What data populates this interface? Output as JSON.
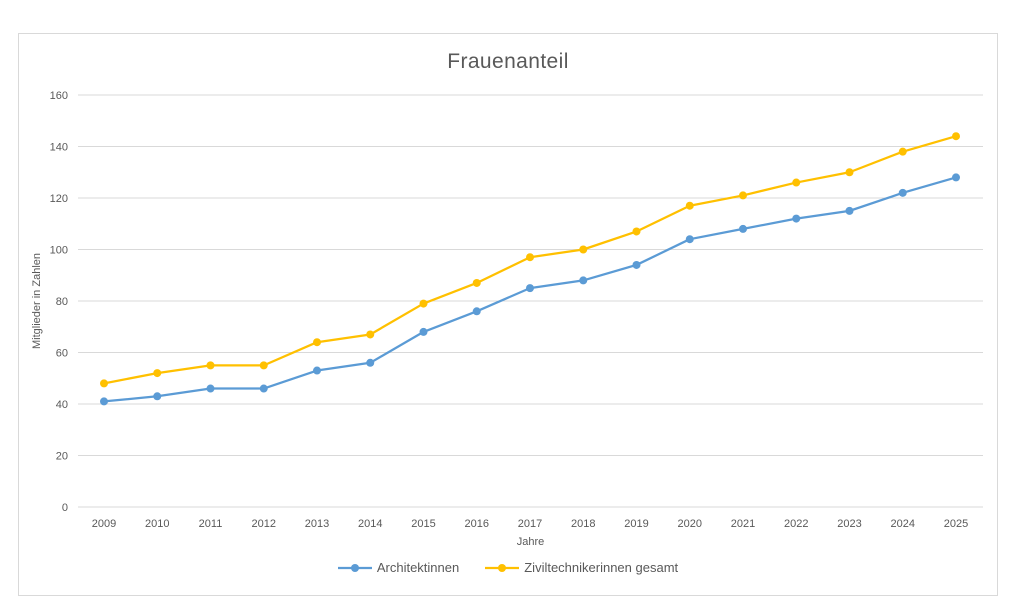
{
  "chart_data": {
    "type": "line",
    "title": "Frauenanteil",
    "xlabel": "Jahre",
    "ylabel": "Mitglieder in Zahlen",
    "categories": [
      "2009",
      "2010",
      "2011",
      "2012",
      "2013",
      "2014",
      "2015",
      "2016",
      "2017",
      "2018",
      "2019",
      "2020",
      "2021",
      "2022",
      "2023",
      "2024",
      "2025"
    ],
    "series": [
      {
        "name": "Architektinnen",
        "color": "#5B9BD5",
        "values": [
          41,
          43,
          46,
          46,
          53,
          56,
          68,
          76,
          85,
          88,
          94,
          104,
          108,
          112,
          115,
          122,
          128
        ]
      },
      {
        "name": "Ziviltechnikerinnen gesamt",
        "color": "#FFC000",
        "values": [
          48,
          52,
          55,
          55,
          64,
          67,
          79,
          87,
          97,
          100,
          107,
          117,
          121,
          126,
          130,
          138,
          144
        ]
      }
    ],
    "ylim": [
      0,
      160
    ],
    "yticks": [
      0,
      20,
      40,
      60,
      80,
      100,
      120,
      140,
      160
    ],
    "grid": "horizontal",
    "legend_position": "bottom",
    "colors": {
      "text": "#595959",
      "grid": "#D9D9D9",
      "border": "#D9D9D9",
      "background": "#FFFFFF"
    }
  }
}
